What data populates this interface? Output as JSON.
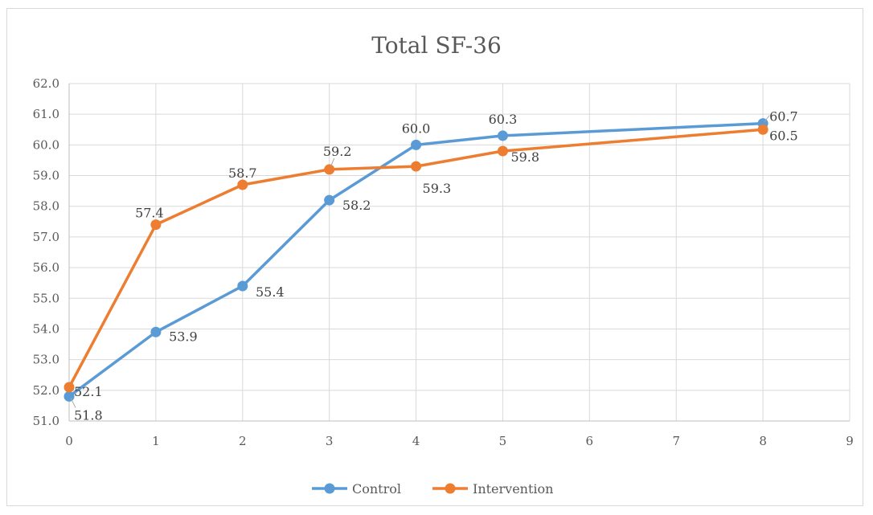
{
  "chart_data": {
    "type": "line",
    "title": "Total SF-36",
    "xlabel": "",
    "ylabel": "",
    "xlim": [
      0,
      9
    ],
    "ylim": [
      51,
      62
    ],
    "x_ticks": [
      "0",
      "1",
      "2",
      "3",
      "4",
      "5",
      "6",
      "7",
      "8",
      "9"
    ],
    "y_ticks": [
      "51.0",
      "52.0",
      "53.0",
      "54.0",
      "55.0",
      "56.0",
      "57.0",
      "58.0",
      "59.0",
      "60.0",
      "61.0",
      "62.0"
    ],
    "grid": true,
    "legend_position": "bottom",
    "series": [
      {
        "name": "Control",
        "color": "#5b9bd5",
        "x": [
          0,
          1,
          2,
          3,
          4,
          5,
          8
        ],
        "y": [
          51.8,
          53.9,
          55.4,
          58.2,
          60.0,
          60.3,
          60.7
        ],
        "labels": [
          "51.8",
          "53.9",
          "55.4",
          "58.2",
          "60.0",
          "60.3",
          "60.7"
        ]
      },
      {
        "name": "Intervention",
        "color": "#ed7d31",
        "x": [
          0,
          1,
          2,
          3,
          4,
          5,
          8
        ],
        "y": [
          52.1,
          57.4,
          58.7,
          59.2,
          59.3,
          59.8,
          60.5
        ],
        "labels": [
          "52.1",
          "57.4",
          "58.7",
          "59.2",
          "59.3",
          "59.8",
          "60.5"
        ]
      }
    ]
  }
}
